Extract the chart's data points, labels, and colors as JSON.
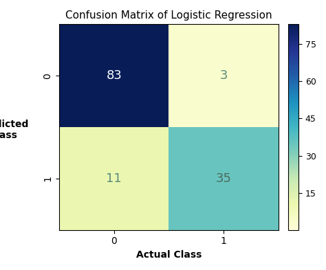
{
  "title": "Confusion Matrix of Logistic Regression",
  "matrix": [
    [
      83,
      3
    ],
    [
      11,
      35
    ]
  ],
  "xlabel": "Actual Class",
  "ylabel": "Predicted\nClass",
  "x_tick_labels": [
    "0",
    "1"
  ],
  "y_tick_labels": [
    "0",
    "1"
  ],
  "colormap": "YlGnBu",
  "vmin": 0,
  "vmax": 83,
  "colorbar_ticks": [
    15,
    30,
    45,
    60,
    75
  ],
  "text_colors": {
    "light_dark": "#5a8a7a",
    "white": "#ffffff",
    "dark_gray": "#4a6b60"
  },
  "text_threshold_white": 60,
  "text_threshold_dark": 20,
  "title_fontsize": 11,
  "label_fontsize": 10,
  "tick_fontsize": 10,
  "value_fontsize": 13,
  "cbar_tick_fontsize": 9,
  "background_color": "#ffffff",
  "figsize": [
    4.74,
    3.93
  ],
  "dpi": 100
}
